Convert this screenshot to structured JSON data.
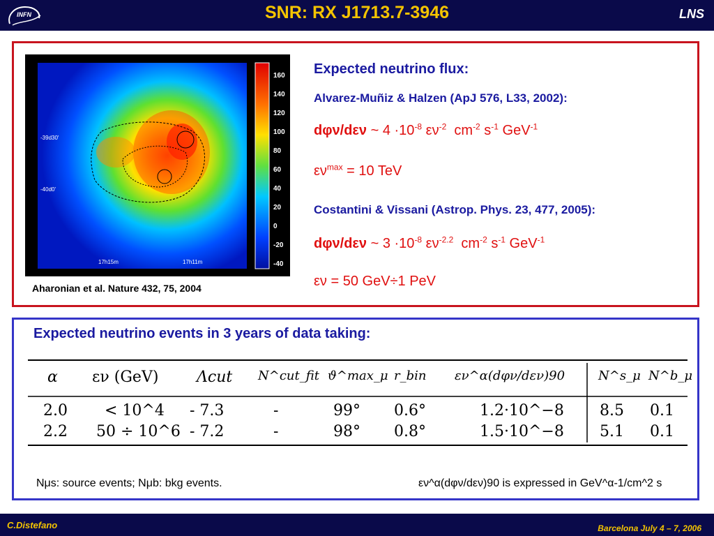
{
  "header": {
    "title": "SNR: RX J1713.7-3946",
    "right_label": "LNS",
    "logo_text": "INFN"
  },
  "footer": {
    "author": "C.Distefano",
    "event": "Barcelona July 4 – 7, 2006"
  },
  "figure": {
    "caption": "Aharonian et al. Nature 432, 75, 2004",
    "colorbar_ticks": [
      "160",
      "140",
      "120",
      "100",
      "80",
      "60",
      "40",
      "20",
      "0",
      "-20",
      "-40"
    ],
    "dec_labels": [
      "-39d30'",
      "-40d0'"
    ],
    "ra_labels": [
      "17h15m",
      "17h11m"
    ]
  },
  "flux": {
    "heading": "Expected neutrino flux:",
    "ref1": "Alvarez-Muñiz & Halzen (ApJ 576, L33, 2002):",
    "formula1": {
      "lhs": "dφν/dεν",
      "coef": "~ 4 ·10",
      "coef_exp": "-8",
      "eps": "εν",
      "eps_exp": "-2",
      "unit_cm": "cm",
      "unit_cm_exp": "-2",
      "unit_s": "s",
      "unit_s_exp": "-1",
      "unit_gev": "GeV",
      "unit_gev_exp": "-1"
    },
    "emax": {
      "eps": "εν",
      "sup": "max",
      "value": "= 10 TeV"
    },
    "ref2": "Costantini & Vissani (Astrop. Phys. 23, 477, 2005):",
    "formula2": {
      "lhs": "dφν/dεν",
      "coef": "~ 3 ·10",
      "coef_exp": "-8",
      "eps": "εν",
      "eps_exp": "-2.2",
      "unit_cm": "cm",
      "unit_cm_exp": "-2",
      "unit_s": "s",
      "unit_s_exp": "-1",
      "unit_gev": "GeV",
      "unit_gev_exp": "-1"
    },
    "erange": {
      "eps": "εν",
      "value": "= 50 GeV÷1 PeV"
    }
  },
  "events": {
    "heading": "Expected neutrino events in 3 years of data taking:",
    "table": {
      "headers": [
        "α",
        "εν (GeV)",
        "Λcut",
        "N^cut_fit",
        "ϑ^max_μ",
        "r_bin",
        "εν^α(dφν/dεν)90",
        "N^s_μ",
        "N^b_μ"
      ],
      "rows": [
        [
          "2.0",
          "< 10^4",
          "- 7.3",
          "-",
          "99°",
          "0.6°",
          "1.2·10^−8",
          "8.5",
          "0.1"
        ],
        [
          "2.2",
          "50 ÷ 10^6",
          "- 7.2",
          "-",
          "98°",
          "0.8°",
          "1.5·10^−8",
          "5.1",
          "0.1"
        ]
      ]
    },
    "note_left": "Nμs: source events; Nμb: bkg events.",
    "note_right": "εν^α(dφν/dεν)90 is expressed in GeV^α-1/cm^2 s"
  }
}
